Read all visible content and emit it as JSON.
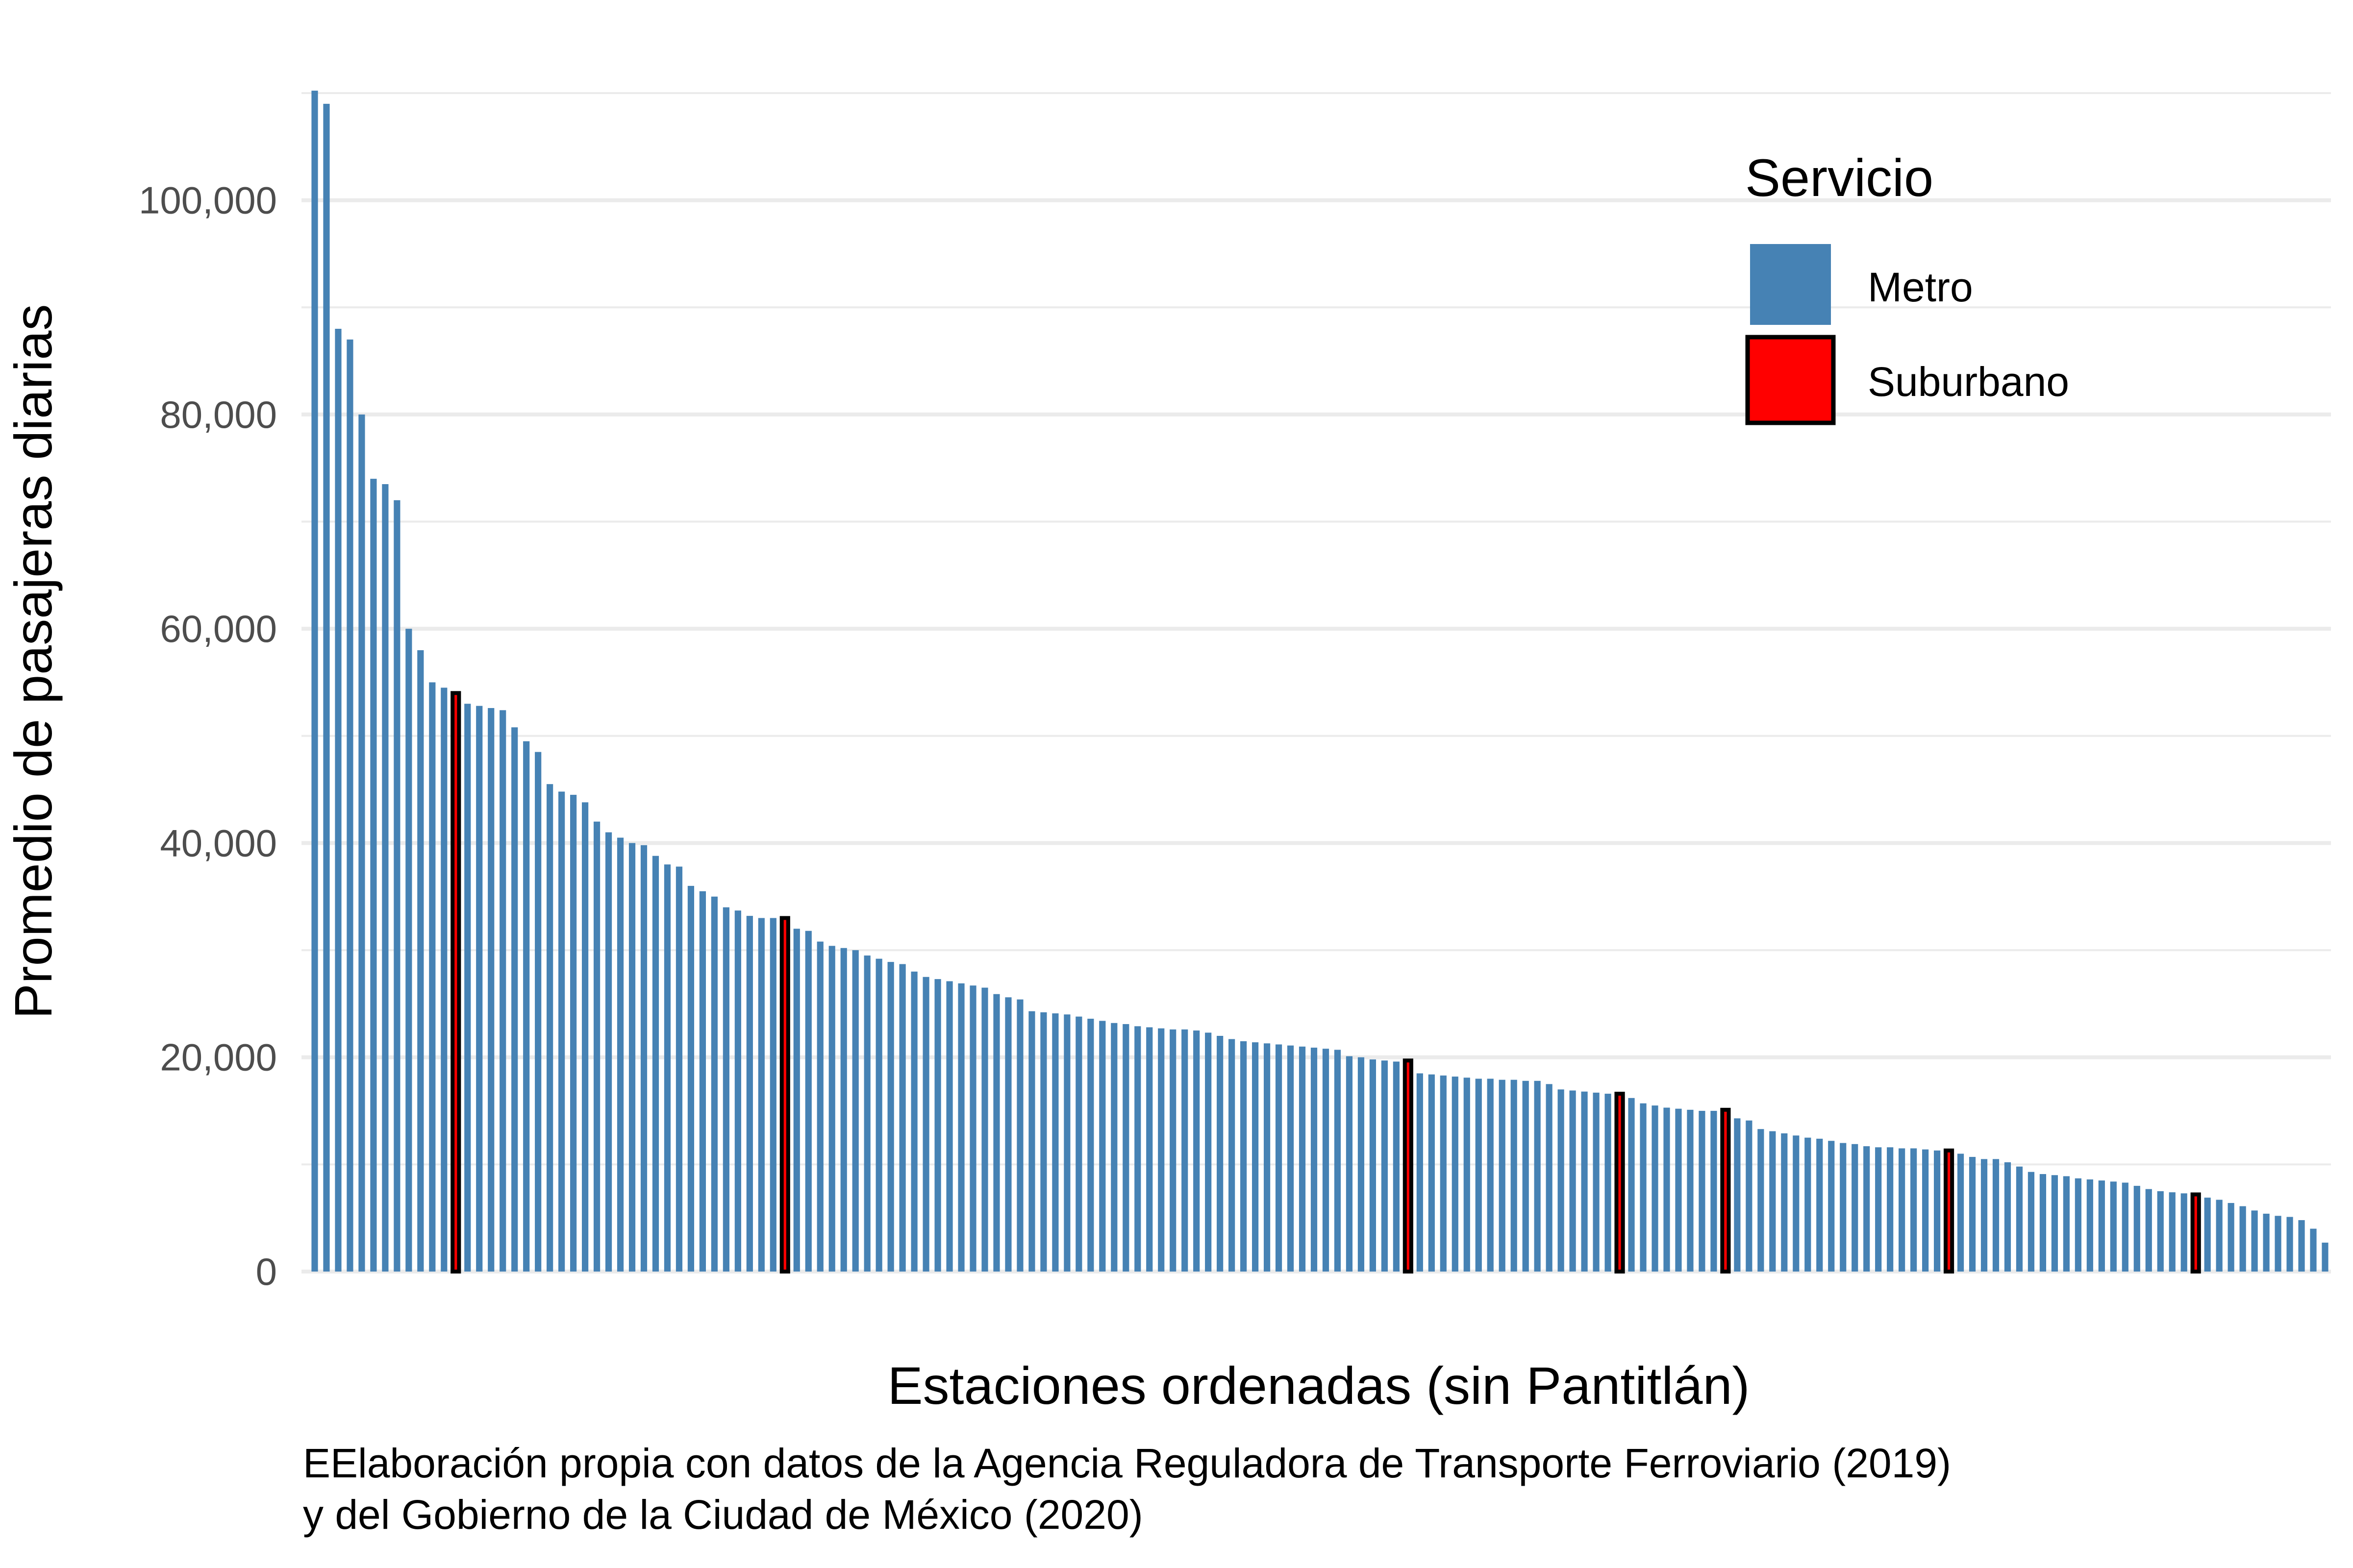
{
  "chart_data": {
    "type": "bar",
    "ylabel": "Promedio de pasajeras diarias",
    "xlabel": "Estaciones ordenadas (sin Pantitlán)",
    "caption": [
      "EElaboración propia con datos de la Agencia Reguladora de Transporte Ferroviario (2019)",
      "y del Gobierno de la Ciudad de México (2020)"
    ],
    "ylim": [
      0,
      110000
    ],
    "yticks": [
      0,
      20000,
      40000,
      60000,
      80000,
      100000
    ],
    "ytick_labels": [
      "0",
      "20,000",
      "40,000",
      "60,000",
      "80,000",
      "100,000"
    ],
    "grid": true,
    "legend": {
      "title": "Servicio",
      "position": "top-right",
      "entries": [
        {
          "label": "Metro",
          "color": "#4682B4"
        },
        {
          "label": "Suburbano",
          "color": "#FF0000"
        }
      ]
    },
    "colors": {
      "Metro": "#4682B4",
      "Suburbano": "#FF0000",
      "outline": "#000000"
    },
    "bars": [
      {
        "value": 112000,
        "service": "Metro"
      },
      {
        "value": 109000,
        "service": "Metro"
      },
      {
        "value": 88000,
        "service": "Metro"
      },
      {
        "value": 87000,
        "service": "Metro"
      },
      {
        "value": 80000,
        "service": "Metro"
      },
      {
        "value": 74000,
        "service": "Metro"
      },
      {
        "value": 73500,
        "service": "Metro"
      },
      {
        "value": 72000,
        "service": "Metro"
      },
      {
        "value": 60000,
        "service": "Metro"
      },
      {
        "value": 58000,
        "service": "Metro"
      },
      {
        "value": 55000,
        "service": "Metro"
      },
      {
        "value": 54500,
        "service": "Metro"
      },
      {
        "value": 54000,
        "service": "Suburbano"
      },
      {
        "value": 53000,
        "service": "Metro"
      },
      {
        "value": 52800,
        "service": "Metro"
      },
      {
        "value": 52600,
        "service": "Metro"
      },
      {
        "value": 52400,
        "service": "Metro"
      },
      {
        "value": 50800,
        "service": "Metro"
      },
      {
        "value": 49500,
        "service": "Metro"
      },
      {
        "value": 48500,
        "service": "Metro"
      },
      {
        "value": 45500,
        "service": "Metro"
      },
      {
        "value": 44800,
        "service": "Metro"
      },
      {
        "value": 44500,
        "service": "Metro"
      },
      {
        "value": 43800,
        "service": "Metro"
      },
      {
        "value": 42000,
        "service": "Metro"
      },
      {
        "value": 41000,
        "service": "Metro"
      },
      {
        "value": 40500,
        "service": "Metro"
      },
      {
        "value": 40000,
        "service": "Metro"
      },
      {
        "value": 39800,
        "service": "Metro"
      },
      {
        "value": 38800,
        "service": "Metro"
      },
      {
        "value": 38000,
        "service": "Metro"
      },
      {
        "value": 37800,
        "service": "Metro"
      },
      {
        "value": 36000,
        "service": "Metro"
      },
      {
        "value": 35500,
        "service": "Metro"
      },
      {
        "value": 35000,
        "service": "Metro"
      },
      {
        "value": 34000,
        "service": "Metro"
      },
      {
        "value": 33700,
        "service": "Metro"
      },
      {
        "value": 33200,
        "service": "Metro"
      },
      {
        "value": 33000,
        "service": "Metro"
      },
      {
        "value": 33000,
        "service": "Metro"
      },
      {
        "value": 33000,
        "service": "Suburbano"
      },
      {
        "value": 32000,
        "service": "Metro"
      },
      {
        "value": 31800,
        "service": "Metro"
      },
      {
        "value": 30800,
        "service": "Metro"
      },
      {
        "value": 30400,
        "service": "Metro"
      },
      {
        "value": 30200,
        "service": "Metro"
      },
      {
        "value": 30000,
        "service": "Metro"
      },
      {
        "value": 29500,
        "service": "Metro"
      },
      {
        "value": 29200,
        "service": "Metro"
      },
      {
        "value": 28900,
        "service": "Metro"
      },
      {
        "value": 28700,
        "service": "Metro"
      },
      {
        "value": 28000,
        "service": "Metro"
      },
      {
        "value": 27500,
        "service": "Metro"
      },
      {
        "value": 27300,
        "service": "Metro"
      },
      {
        "value": 27100,
        "service": "Metro"
      },
      {
        "value": 26900,
        "service": "Metro"
      },
      {
        "value": 26700,
        "service": "Metro"
      },
      {
        "value": 26500,
        "service": "Metro"
      },
      {
        "value": 25900,
        "service": "Metro"
      },
      {
        "value": 25600,
        "service": "Metro"
      },
      {
        "value": 25400,
        "service": "Metro"
      },
      {
        "value": 24300,
        "service": "Metro"
      },
      {
        "value": 24200,
        "service": "Metro"
      },
      {
        "value": 24100,
        "service": "Metro"
      },
      {
        "value": 24000,
        "service": "Metro"
      },
      {
        "value": 23800,
        "service": "Metro"
      },
      {
        "value": 23600,
        "service": "Metro"
      },
      {
        "value": 23400,
        "service": "Metro"
      },
      {
        "value": 23200,
        "service": "Metro"
      },
      {
        "value": 23100,
        "service": "Metro"
      },
      {
        "value": 22900,
        "service": "Metro"
      },
      {
        "value": 22800,
        "service": "Metro"
      },
      {
        "value": 22700,
        "service": "Metro"
      },
      {
        "value": 22600,
        "service": "Metro"
      },
      {
        "value": 22600,
        "service": "Metro"
      },
      {
        "value": 22500,
        "service": "Metro"
      },
      {
        "value": 22300,
        "service": "Metro"
      },
      {
        "value": 22000,
        "service": "Metro"
      },
      {
        "value": 21700,
        "service": "Metro"
      },
      {
        "value": 21500,
        "service": "Metro"
      },
      {
        "value": 21400,
        "service": "Metro"
      },
      {
        "value": 21300,
        "service": "Metro"
      },
      {
        "value": 21200,
        "service": "Metro"
      },
      {
        "value": 21100,
        "service": "Metro"
      },
      {
        "value": 21000,
        "service": "Metro"
      },
      {
        "value": 20900,
        "service": "Metro"
      },
      {
        "value": 20800,
        "service": "Metro"
      },
      {
        "value": 20700,
        "service": "Metro"
      },
      {
        "value": 20100,
        "service": "Metro"
      },
      {
        "value": 20000,
        "service": "Metro"
      },
      {
        "value": 19800,
        "service": "Metro"
      },
      {
        "value": 19700,
        "service": "Metro"
      },
      {
        "value": 19600,
        "service": "Metro"
      },
      {
        "value": 19700,
        "service": "Suburbano"
      },
      {
        "value": 18500,
        "service": "Metro"
      },
      {
        "value": 18400,
        "service": "Metro"
      },
      {
        "value": 18300,
        "service": "Metro"
      },
      {
        "value": 18200,
        "service": "Metro"
      },
      {
        "value": 18100,
        "service": "Metro"
      },
      {
        "value": 18000,
        "service": "Metro"
      },
      {
        "value": 18000,
        "service": "Metro"
      },
      {
        "value": 17900,
        "service": "Metro"
      },
      {
        "value": 17900,
        "service": "Metro"
      },
      {
        "value": 17800,
        "service": "Metro"
      },
      {
        "value": 17800,
        "service": "Metro"
      },
      {
        "value": 17500,
        "service": "Metro"
      },
      {
        "value": 17000,
        "service": "Metro"
      },
      {
        "value": 16900,
        "service": "Metro"
      },
      {
        "value": 16800,
        "service": "Metro"
      },
      {
        "value": 16700,
        "service": "Metro"
      },
      {
        "value": 16600,
        "service": "Metro"
      },
      {
        "value": 16600,
        "service": "Suburbano"
      },
      {
        "value": 16200,
        "service": "Metro"
      },
      {
        "value": 15700,
        "service": "Metro"
      },
      {
        "value": 15500,
        "service": "Metro"
      },
      {
        "value": 15300,
        "service": "Metro"
      },
      {
        "value": 15200,
        "service": "Metro"
      },
      {
        "value": 15100,
        "service": "Metro"
      },
      {
        "value": 15000,
        "service": "Metro"
      },
      {
        "value": 15000,
        "service": "Metro"
      },
      {
        "value": 15100,
        "service": "Suburbano"
      },
      {
        "value": 14300,
        "service": "Metro"
      },
      {
        "value": 14100,
        "service": "Metro"
      },
      {
        "value": 13300,
        "service": "Metro"
      },
      {
        "value": 13100,
        "service": "Metro"
      },
      {
        "value": 12900,
        "service": "Metro"
      },
      {
        "value": 12700,
        "service": "Metro"
      },
      {
        "value": 12500,
        "service": "Metro"
      },
      {
        "value": 12400,
        "service": "Metro"
      },
      {
        "value": 12200,
        "service": "Metro"
      },
      {
        "value": 12000,
        "service": "Metro"
      },
      {
        "value": 11900,
        "service": "Metro"
      },
      {
        "value": 11700,
        "service": "Metro"
      },
      {
        "value": 11600,
        "service": "Metro"
      },
      {
        "value": 11600,
        "service": "Metro"
      },
      {
        "value": 11500,
        "service": "Metro"
      },
      {
        "value": 11500,
        "service": "Metro"
      },
      {
        "value": 11400,
        "service": "Metro"
      },
      {
        "value": 11300,
        "service": "Metro"
      },
      {
        "value": 11300,
        "service": "Suburbano"
      },
      {
        "value": 11000,
        "service": "Metro"
      },
      {
        "value": 10700,
        "service": "Metro"
      },
      {
        "value": 10500,
        "service": "Metro"
      },
      {
        "value": 10500,
        "service": "Metro"
      },
      {
        "value": 10200,
        "service": "Metro"
      },
      {
        "value": 9800,
        "service": "Metro"
      },
      {
        "value": 9300,
        "service": "Metro"
      },
      {
        "value": 9100,
        "service": "Metro"
      },
      {
        "value": 9000,
        "service": "Metro"
      },
      {
        "value": 8900,
        "service": "Metro"
      },
      {
        "value": 8700,
        "service": "Metro"
      },
      {
        "value": 8600,
        "service": "Metro"
      },
      {
        "value": 8500,
        "service": "Metro"
      },
      {
        "value": 8400,
        "service": "Metro"
      },
      {
        "value": 8300,
        "service": "Metro"
      },
      {
        "value": 8000,
        "service": "Metro"
      },
      {
        "value": 7700,
        "service": "Metro"
      },
      {
        "value": 7500,
        "service": "Metro"
      },
      {
        "value": 7400,
        "service": "Metro"
      },
      {
        "value": 7300,
        "service": "Metro"
      },
      {
        "value": 7200,
        "service": "Suburbano"
      },
      {
        "value": 6900,
        "service": "Metro"
      },
      {
        "value": 6700,
        "service": "Metro"
      },
      {
        "value": 6400,
        "service": "Metro"
      },
      {
        "value": 6100,
        "service": "Metro"
      },
      {
        "value": 5700,
        "service": "Metro"
      },
      {
        "value": 5400,
        "service": "Metro"
      },
      {
        "value": 5200,
        "service": "Metro"
      },
      {
        "value": 5100,
        "service": "Metro"
      },
      {
        "value": 4800,
        "service": "Metro"
      },
      {
        "value": 4000,
        "service": "Metro"
      },
      {
        "value": 2700,
        "service": "Metro"
      }
    ]
  }
}
